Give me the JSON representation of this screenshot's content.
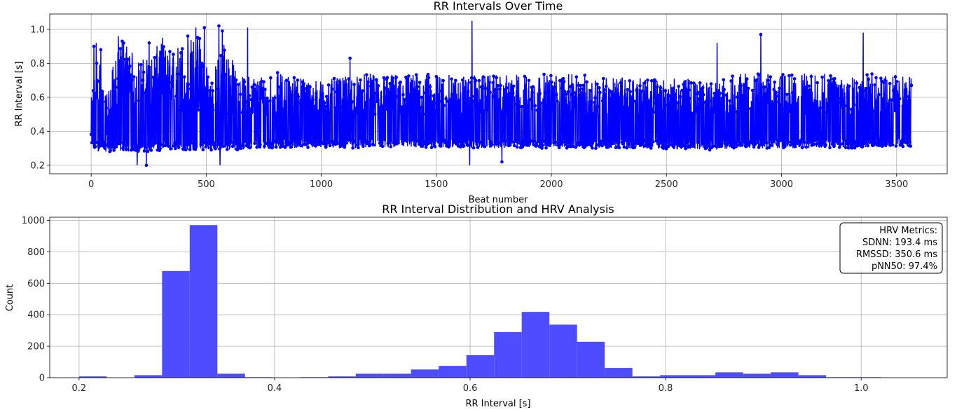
{
  "chart_data": [
    {
      "type": "line",
      "title": "RR Intervals Over Time",
      "xlabel": "Beat number",
      "ylabel": "RR Interval [s]",
      "xlim": [
        -180,
        3720
      ],
      "ylim": [
        0.15,
        1.09
      ],
      "xticks": [
        "0",
        "500",
        "1000",
        "1500",
        "2000",
        "2500",
        "3000",
        "3500"
      ],
      "yticks": [
        "0.2",
        "0.4",
        "0.6",
        "0.8",
        "1.0"
      ],
      "grid": true,
      "marker": "dot",
      "color": "#0000ff",
      "n_beats": 3565,
      "envelope": [
        {
          "x": 0,
          "low": 0.28,
          "high": 0.59
        },
        {
          "x": 30,
          "low": 0.28,
          "high": 0.91
        },
        {
          "x": 60,
          "low": 0.28,
          "high": 0.6
        },
        {
          "x": 100,
          "low": 0.28,
          "high": 0.81
        },
        {
          "x": 140,
          "low": 0.28,
          "high": 0.95
        },
        {
          "x": 200,
          "low": 0.28,
          "high": 0.82
        },
        {
          "x": 260,
          "low": 0.28,
          "high": 0.85
        },
        {
          "x": 300,
          "low": 0.28,
          "high": 0.93
        },
        {
          "x": 340,
          "low": 0.29,
          "high": 0.88
        },
        {
          "x": 400,
          "low": 0.29,
          "high": 0.94
        },
        {
          "x": 480,
          "low": 0.29,
          "high": 0.98
        },
        {
          "x": 520,
          "low": 0.29,
          "high": 0.7
        },
        {
          "x": 580,
          "low": 0.29,
          "high": 0.97
        },
        {
          "x": 640,
          "low": 0.29,
          "high": 0.72
        },
        {
          "x": 800,
          "low": 0.3,
          "high": 0.75
        },
        {
          "x": 1000,
          "low": 0.3,
          "high": 0.7
        },
        {
          "x": 1200,
          "low": 0.3,
          "high": 0.74
        },
        {
          "x": 1400,
          "low": 0.3,
          "high": 0.74
        },
        {
          "x": 1600,
          "low": 0.3,
          "high": 0.73
        },
        {
          "x": 1800,
          "low": 0.3,
          "high": 0.73
        },
        {
          "x": 2000,
          "low": 0.3,
          "high": 0.74
        },
        {
          "x": 2200,
          "low": 0.3,
          "high": 0.73
        },
        {
          "x": 2400,
          "low": 0.3,
          "high": 0.71
        },
        {
          "x": 2600,
          "low": 0.29,
          "high": 0.71
        },
        {
          "x": 2700,
          "low": 0.29,
          "high": 0.68
        },
        {
          "x": 2800,
          "low": 0.3,
          "high": 0.74
        },
        {
          "x": 3000,
          "low": 0.3,
          "high": 0.74
        },
        {
          "x": 3200,
          "low": 0.3,
          "high": 0.74
        },
        {
          "x": 3400,
          "low": 0.3,
          "high": 0.74
        },
        {
          "x": 3565,
          "low": 0.31,
          "high": 0.72
        }
      ],
      "spikes": [
        {
          "x": 12,
          "y": 0.9
        },
        {
          "x": 22,
          "y": 0.92
        },
        {
          "x": 42,
          "y": 0.88
        },
        {
          "x": 95,
          "y": 0.78
        },
        {
          "x": 118,
          "y": 0.96
        },
        {
          "x": 135,
          "y": 0.93
        },
        {
          "x": 200,
          "y": 0.2
        },
        {
          "x": 240,
          "y": 0.2
        },
        {
          "x": 252,
          "y": 0.92
        },
        {
          "x": 310,
          "y": 0.95
        },
        {
          "x": 420,
          "y": 0.96
        },
        {
          "x": 455,
          "y": 1.01
        },
        {
          "x": 492,
          "y": 1.01
        },
        {
          "x": 555,
          "y": 1.02
        },
        {
          "x": 570,
          "y": 0.99
        },
        {
          "x": 560,
          "y": 0.2
        },
        {
          "x": 680,
          "y": 1.01
        },
        {
          "x": 680,
          "y": 0.2
        },
        {
          "x": 1125,
          "y": 0.83
        },
        {
          "x": 1645,
          "y": 0.2
        },
        {
          "x": 1655,
          "y": 1.05
        },
        {
          "x": 1785,
          "y": 0.22
        },
        {
          "x": 2720,
          "y": 0.92
        },
        {
          "x": 2910,
          "y": 0.97
        },
        {
          "x": 3355,
          "y": 0.98
        }
      ]
    },
    {
      "type": "bar",
      "title": "RR Interval Distribution and HRV Analysis",
      "xlabel": "RR Interval [s]",
      "ylabel": "Count",
      "xlim": [
        0.17,
        1.088
      ],
      "ylim": [
        0,
        1020
      ],
      "xticks": [
        "0.2",
        "0.4",
        "0.6",
        "0.8",
        "1.0"
      ],
      "yticks": [
        "0",
        "200",
        "400",
        "600",
        "800",
        "1000"
      ],
      "grid": true,
      "color": "#4d4dff",
      "bin_start": 0.2,
      "bin_width": 0.0283,
      "counts": [
        8,
        0,
        16,
        678,
        970,
        25,
        3,
        0,
        3,
        8,
        25,
        25,
        52,
        75,
        143,
        290,
        418,
        337,
        228,
        62,
        8,
        16,
        16,
        34,
        25,
        34,
        16,
        3,
        3,
        0
      ],
      "annotation": {
        "lines": [
          "HRV Metrics:",
          "SDNN: 193.4 ms",
          "RMSSD: 350.6 ms",
          "pNN50: 97.4%"
        ],
        "placement": "top-right"
      }
    }
  ]
}
